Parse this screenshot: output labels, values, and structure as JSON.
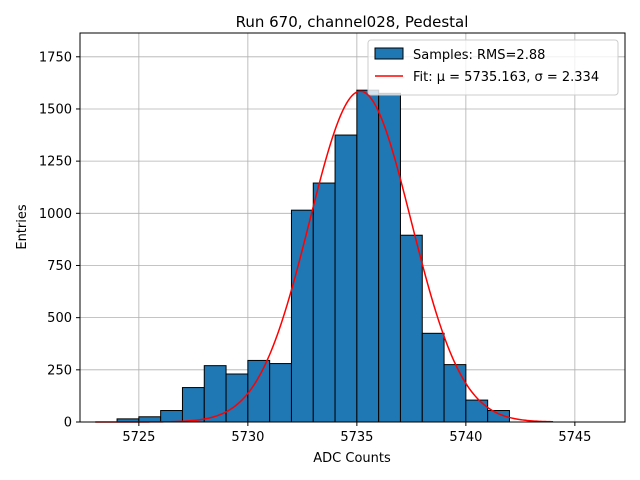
{
  "chart_data": {
    "type": "bar",
    "title": "Run 670, channel028, Pedestal",
    "xlabel": "ADC Counts",
    "ylabel": "Entries",
    "xlim": [
      5722.3,
      5747.3
    ],
    "ylim": [
      0,
      1864
    ],
    "xticks": [
      5725,
      5730,
      5735,
      5740,
      5745
    ],
    "yticks": [
      0,
      250,
      500,
      750,
      1000,
      1250,
      1500,
      1750
    ],
    "grid": true,
    "legend_position": "top-right",
    "histogram": {
      "name": "Samples: RMS=2.88",
      "color": "#1f77b4",
      "bin_edges": [
        5723,
        5724,
        5725,
        5726,
        5727,
        5728,
        5729,
        5730,
        5731,
        5732,
        5733,
        5734,
        5735,
        5736,
        5737,
        5738,
        5739,
        5740,
        5741,
        5742,
        5743,
        5744,
        5745,
        5746
      ],
      "counts": [
        0,
        15,
        25,
        55,
        165,
        270,
        230,
        295,
        280,
        1015,
        1145,
        1375,
        1590,
        1575,
        895,
        425,
        275,
        105,
        55,
        0,
        0,
        0,
        0
      ]
    },
    "fit": {
      "name": "Fit: μ = 5735.163, σ = 2.334",
      "color": "#ff0000",
      "mu": 5735.163,
      "sigma": 2.334,
      "amplitude": 1585,
      "x_range": [
        5723,
        5744
      ]
    }
  }
}
